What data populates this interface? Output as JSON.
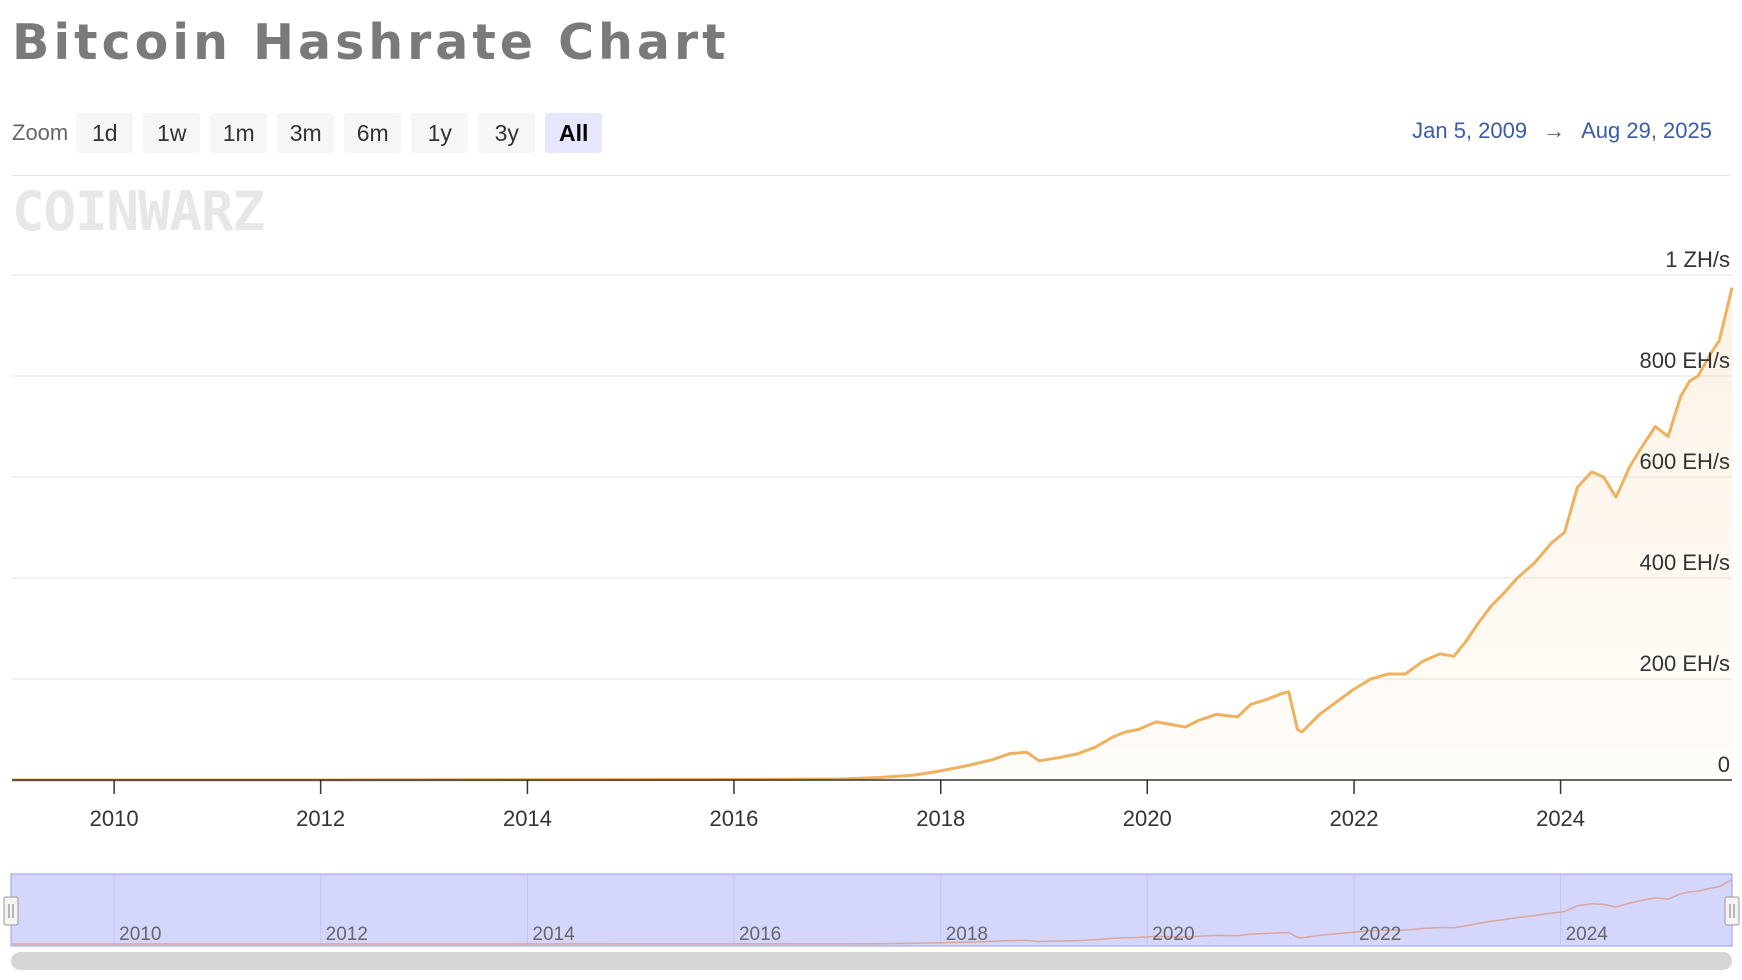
{
  "title": "Bitcoin Hashrate Chart",
  "zoom": {
    "label": "Zoom",
    "options": [
      "1d",
      "1w",
      "1m",
      "3m",
      "6m",
      "1y",
      "3y",
      "All"
    ],
    "selected": "All"
  },
  "range": {
    "from": "Jan 5, 2009",
    "arrow": "→",
    "to": "Aug 29, 2025"
  },
  "watermark": "COINWARZ",
  "colors": {
    "line": "#efb15f",
    "navigator_bg": "#d4d6fb",
    "range_text": "#3b5ba8"
  },
  "chart_data": {
    "type": "area",
    "title": "Bitcoin Hashrate Chart",
    "xlabel": "",
    "ylabel": "",
    "x_range": [
      "2009-01-05",
      "2025-08-29"
    ],
    "ylim": [
      0,
      1000
    ],
    "y_unit": "EH/s",
    "y_ticks": [
      {
        "value": 0,
        "label": "0"
      },
      {
        "value": 200,
        "label": "200 EH/s"
      },
      {
        "value": 400,
        "label": "400 EH/s"
      },
      {
        "value": 600,
        "label": "600 EH/s"
      },
      {
        "value": 800,
        "label": "800 EH/s"
      },
      {
        "value": 1000,
        "label": "1 ZH/s"
      }
    ],
    "x_ticks": [
      "2010",
      "2012",
      "2014",
      "2016",
      "2018",
      "2020",
      "2022",
      "2024"
    ],
    "grid": true,
    "legend": "none",
    "series": [
      {
        "x": [
          "2009-01-05",
          "2012-01-01",
          "2016-01-01",
          "2017-01-01",
          "2017-06-01",
          "2017-10-01",
          "2018-01-01",
          "2018-04-01",
          "2018-07-01",
          "2018-09-01",
          "2018-11-01",
          "2018-12-15",
          "2019-03-01",
          "2019-05-01",
          "2019-07-01",
          "2019-09-01",
          "2019-10-15",
          "2019-12-01",
          "2020-02-01",
          "2020-05-15",
          "2020-07-01",
          "2020-09-01",
          "2020-11-15",
          "2021-01-01",
          "2021-03-01",
          "2021-04-15",
          "2021-05-15",
          "2021-06-15",
          "2021-07-01",
          "2021-09-01",
          "2021-11-01",
          "2022-01-01",
          "2022-03-01",
          "2022-05-01",
          "2022-07-01",
          "2022-09-01",
          "2022-11-01",
          "2022-12-20",
          "2023-02-01",
          "2023-03-15",
          "2023-05-01",
          "2023-06-15",
          "2023-08-01",
          "2023-10-01",
          "2023-12-01",
          "2024-01-15",
          "2024-03-01",
          "2024-04-20",
          "2024-06-01",
          "2024-07-15",
          "2024-09-01",
          "2024-10-15",
          "2024-12-01",
          "2025-01-15",
          "2025-03-01",
          "2025-04-01",
          "2025-05-01",
          "2025-06-15",
          "2025-07-15",
          "2025-08-29"
        ],
        "y": [
          0,
          0,
          1,
          2,
          5,
          10,
          18,
          28,
          40,
          52,
          55,
          38,
          45,
          52,
          65,
          85,
          95,
          100,
          115,
          105,
          118,
          130,
          125,
          150,
          160,
          170,
          175,
          100,
          95,
          130,
          155,
          180,
          200,
          210,
          210,
          235,
          250,
          245,
          275,
          310,
          345,
          370,
          400,
          430,
          470,
          490,
          580,
          610,
          600,
          560,
          620,
          660,
          700,
          680,
          760,
          790,
          800,
          845,
          870,
          975
        ]
      }
    ]
  }
}
